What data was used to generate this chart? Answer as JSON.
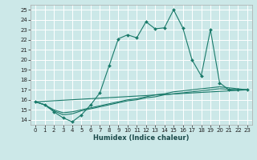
{
  "title": "",
  "xlabel": "Humidex (Indice chaleur)",
  "bg_color": "#cce8e8",
  "line_color": "#1a7a6a",
  "grid_color": "#ffffff",
  "xlim": [
    -0.5,
    23.5
  ],
  "ylim": [
    13.5,
    25.5
  ],
  "yticks": [
    14,
    15,
    16,
    17,
    18,
    19,
    20,
    21,
    22,
    23,
    24,
    25
  ],
  "xticks": [
    0,
    1,
    2,
    3,
    4,
    5,
    6,
    7,
    8,
    9,
    10,
    11,
    12,
    13,
    14,
    15,
    16,
    17,
    18,
    19,
    20,
    21,
    22,
    23
  ],
  "main_x": [
    0,
    1,
    2,
    3,
    4,
    5,
    6,
    7,
    8,
    9,
    10,
    11,
    12,
    13,
    14,
    15,
    16,
    17,
    18,
    19,
    20,
    21,
    22,
    23
  ],
  "main_y": [
    15.8,
    15.5,
    14.8,
    14.2,
    13.8,
    14.5,
    15.5,
    16.7,
    19.4,
    22.1,
    22.5,
    22.2,
    23.8,
    23.1,
    23.2,
    25.0,
    23.2,
    20.0,
    18.4,
    23.0,
    17.7,
    17.0,
    17.0,
    17.0
  ],
  "line2_x": [
    0,
    1,
    2,
    3,
    4,
    5,
    6,
    7,
    8,
    9,
    10,
    11,
    12,
    13,
    14,
    15,
    16,
    17,
    18,
    19,
    20,
    21,
    22,
    23
  ],
  "line2_y": [
    15.8,
    15.5,
    15.0,
    14.7,
    14.8,
    15.0,
    15.2,
    15.4,
    15.6,
    15.8,
    16.0,
    16.1,
    16.3,
    16.5,
    16.6,
    16.8,
    16.9,
    17.0,
    17.1,
    17.2,
    17.3,
    17.2,
    17.1,
    17.0
  ],
  "line3_x": [
    0,
    1,
    2,
    3,
    4,
    5,
    6,
    7,
    8,
    9,
    10,
    11,
    12,
    13,
    14,
    15,
    16,
    17,
    18,
    19,
    20,
    21,
    22,
    23
  ],
  "line3_y": [
    15.8,
    15.5,
    14.9,
    14.5,
    14.6,
    14.9,
    15.1,
    15.3,
    15.5,
    15.7,
    15.9,
    16.0,
    16.2,
    16.3,
    16.5,
    16.6,
    16.7,
    16.8,
    16.9,
    17.0,
    17.1,
    17.05,
    17.0,
    17.0
  ],
  "line4_x": [
    0,
    23
  ],
  "line4_y": [
    15.8,
    17.0
  ],
  "tick_fontsize": 5,
  "xlabel_fontsize": 6,
  "spine_color": "#aaaaaa"
}
